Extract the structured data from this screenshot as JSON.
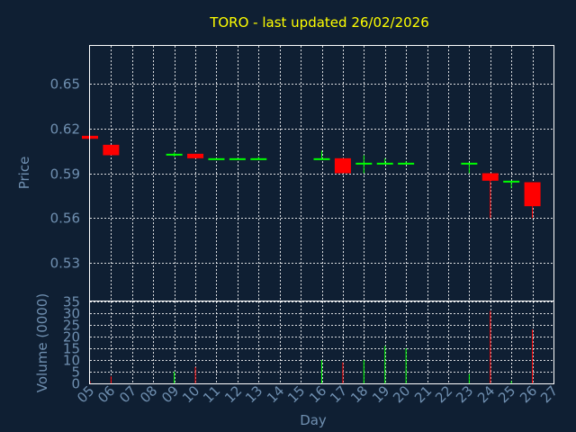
{
  "chart_data": {
    "type": "candlestick",
    "title": "TORO - last updated 26/02/2026",
    "xlabel": "Day",
    "price_panel": {
      "ylabel": "Price",
      "ylim": [
        0.505,
        0.675
      ],
      "yticks": [
        "0.53",
        "0.56",
        "0.59",
        "0.62",
        "0.65"
      ],
      "grid": true
    },
    "volume_panel": {
      "ylabel": "Volume (0000)",
      "ylim": [
        0,
        35
      ],
      "yticks": [
        "0",
        "5",
        "10",
        "15",
        "20",
        "25",
        "30",
        "35"
      ],
      "grid": true
    },
    "x_ticks": [
      "05",
      "06",
      "07",
      "08",
      "09",
      "10",
      "11",
      "12",
      "13",
      "14",
      "15",
      "16",
      "17",
      "18",
      "19",
      "20",
      "21",
      "22",
      "23",
      "24",
      "25",
      "26",
      "27"
    ],
    "candles": [
      {
        "day": 5,
        "open": 0.615,
        "close": 0.613,
        "high": 0.615,
        "low": 0.613,
        "volume": 1
      },
      {
        "day": 6,
        "open": 0.609,
        "close": 0.602,
        "high": 0.609,
        "low": 0.602,
        "volume": 3
      },
      {
        "day": 9,
        "open": 0.602,
        "close": 0.603,
        "high": 0.604,
        "low": 0.601,
        "volume": 5
      },
      {
        "day": 10,
        "open": 0.603,
        "close": 0.6,
        "high": 0.603,
        "low": 0.6,
        "volume": 7
      },
      {
        "day": 11,
        "open": 0.6,
        "close": 0.6,
        "high": 0.6,
        "low": 0.6,
        "volume": 0
      },
      {
        "day": 12,
        "open": 0.6,
        "close": 0.6,
        "high": 0.6,
        "low": 0.599,
        "volume": 0
      },
      {
        "day": 13,
        "open": 0.6,
        "close": 0.6,
        "high": 0.601,
        "low": 0.6,
        "volume": 0
      },
      {
        "day": 16,
        "open": 0.6,
        "close": 0.6,
        "high": 0.605,
        "low": 0.6,
        "volume": 10
      },
      {
        "day": 17,
        "open": 0.6,
        "close": 0.59,
        "high": 0.6,
        "low": 0.59,
        "volume": 9
      },
      {
        "day": 18,
        "open": 0.597,
        "close": 0.597,
        "high": 0.602,
        "low": 0.59,
        "volume": 10
      },
      {
        "day": 19,
        "open": 0.597,
        "close": 0.597,
        "high": 0.6,
        "low": 0.596,
        "volume": 16
      },
      {
        "day": 20,
        "open": 0.597,
        "close": 0.597,
        "high": 0.598,
        "low": 0.596,
        "volume": 15
      },
      {
        "day": 23,
        "open": 0.597,
        "close": 0.597,
        "high": 0.597,
        "low": 0.59,
        "volume": 4
      },
      {
        "day": 24,
        "open": 0.59,
        "close": 0.585,
        "high": 0.59,
        "low": 0.56,
        "volume": 31
      },
      {
        "day": 25,
        "open": 0.585,
        "close": 0.585,
        "high": 0.585,
        "low": 0.58,
        "volume": 1
      },
      {
        "day": 26,
        "open": 0.584,
        "close": 0.568,
        "high": 0.584,
        "low": 0.56,
        "volume": 23
      }
    ],
    "colors": {
      "background": "#0f1f33",
      "up": "#00ff00",
      "down": "#ff0000",
      "title": "#ffff00",
      "axis_text": "#6f8fb0",
      "grid": "#ffffff"
    }
  }
}
